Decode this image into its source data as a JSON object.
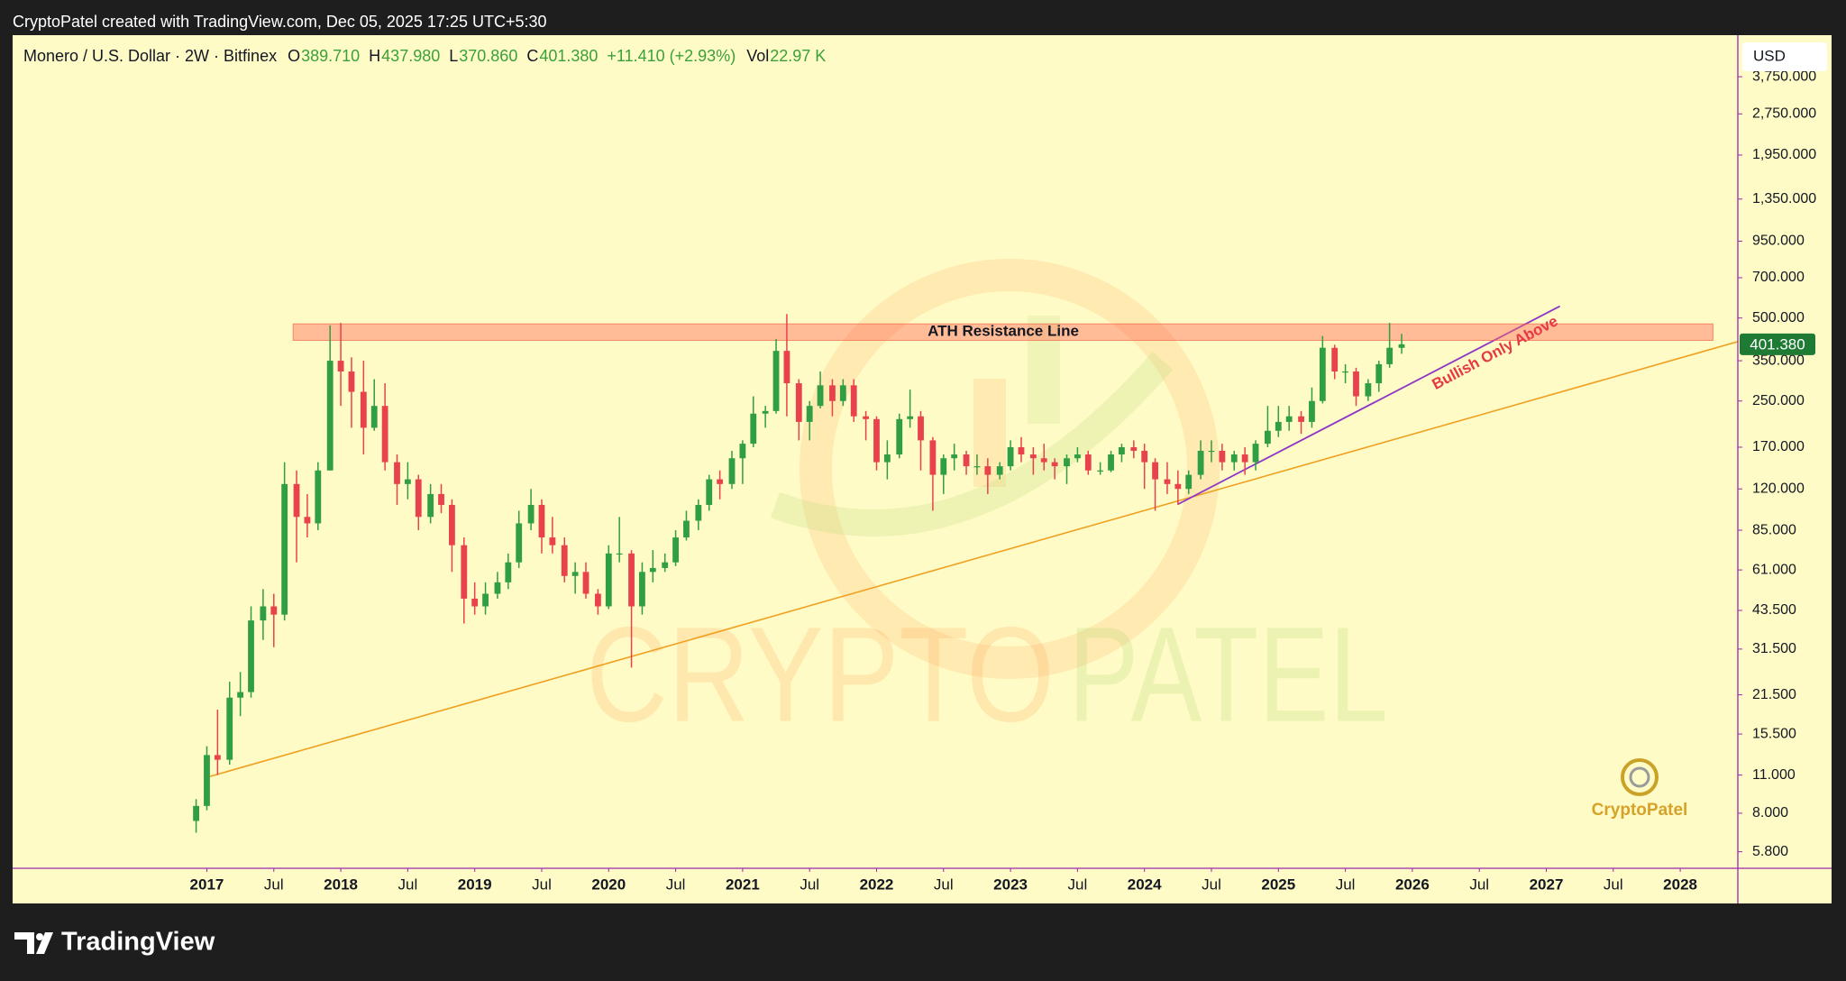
{
  "top_bar": "CryptoPatel created with TradingView.com, Dec 05, 2025 17:25 UTC+5:30",
  "chart_data": {
    "type": "candlestick",
    "legend": {
      "symbol": "Monero / U.S. Dollar · 2W · Bitfinex",
      "items": [
        {
          "label": "O",
          "value": "389.710"
        },
        {
          "label": "H",
          "value": "437.980"
        },
        {
          "label": "L",
          "value": "370.860"
        },
        {
          "label": "C",
          "value": "401.380"
        }
      ],
      "change": "+11.410 (+2.93%)",
      "volume": {
        "label": "Vol",
        "value": "22.97 K"
      }
    },
    "currency": "USD",
    "last_price_label": "401.380",
    "annotations": [
      "ATH Resistance Line",
      "Bullish Only Above"
    ],
    "watermark": [
      "CRYPTO",
      "PATEL"
    ],
    "x": [
      2016.92,
      2017,
      2017.08,
      2017.17,
      2017.25,
      2017.33,
      2017.42,
      2017.5,
      2017.58,
      2017.67,
      2017.75,
      2017.83,
      2017.92,
      2018,
      2018.08,
      2018.17,
      2018.25,
      2018.33,
      2018.42,
      2018.5,
      2018.58,
      2018.67,
      2018.75,
      2018.83,
      2018.92,
      2019,
      2019.08,
      2019.17,
      2019.25,
      2019.33,
      2019.42,
      2019.5,
      2019.58,
      2019.67,
      2019.75,
      2019.83,
      2019.92,
      2020,
      2020.08,
      2020.17,
      2020.25,
      2020.33,
      2020.42,
      2020.5,
      2020.58,
      2020.67,
      2020.75,
      2020.83,
      2020.92,
      2021,
      2021.08,
      2021.17,
      2021.25,
      2021.33,
      2021.42,
      2021.5,
      2021.58,
      2021.67,
      2021.75,
      2021.83,
      2021.92,
      2022,
      2022.08,
      2022.17,
      2022.25,
      2022.33,
      2022.42,
      2022.5,
      2022.58,
      2022.67,
      2022.75,
      2022.83,
      2022.92,
      2023,
      2023.08,
      2023.17,
      2023.25,
      2023.33,
      2023.42,
      2023.5,
      2023.58,
      2023.67,
      2023.75,
      2023.83,
      2023.92,
      2024,
      2024.08,
      2024.17,
      2024.25,
      2024.33,
      2024.42,
      2024.5,
      2024.58,
      2024.67,
      2024.75,
      2024.83,
      2024.92,
      2025,
      2025.08,
      2025.17,
      2025.25,
      2025.33,
      2025.42,
      2025.5,
      2025.58,
      2025.67,
      2025.75,
      2025.83,
      2025.92
    ],
    "open": [
      7.5,
      8.5,
      13,
      12.5,
      21,
      22,
      40,
      45,
      42,
      125,
      95,
      90,
      140,
      350,
      320,
      270,
      200,
      240,
      150,
      125,
      130,
      95,
      115,
      105,
      75,
      48,
      45,
      50,
      55,
      65,
      90,
      105,
      80,
      75,
      58,
      60,
      50,
      45,
      70,
      70,
      45,
      60,
      62,
      65,
      80,
      92,
      105,
      130,
      125,
      155,
      175,
      225,
      230,
      380,
      290,
      210,
      240,
      285,
      250,
      285,
      220,
      215,
      150,
      160,
      215,
      220,
      180,
      135,
      155,
      160,
      145,
      145,
      135,
      145,
      170,
      160,
      155,
      150,
      145,
      155,
      160,
      140,
      140,
      160,
      170,
      165,
      150,
      130,
      125,
      120,
      135,
      165,
      165,
      150,
      160,
      150,
      175,
      195,
      210,
      220,
      210,
      250,
      390,
      320,
      320,
      260,
      290,
      340,
      389.71
    ],
    "high": [
      9,
      14,
      19,
      24,
      26,
      45,
      52,
      50,
      150,
      140,
      115,
      150,
      470,
      480,
      360,
      350,
      300,
      290,
      160,
      150,
      135,
      125,
      125,
      110,
      80,
      55,
      55,
      60,
      70,
      100,
      120,
      110,
      95,
      80,
      65,
      65,
      52,
      75,
      95,
      72,
      65,
      72,
      70,
      85,
      100,
      110,
      135,
      140,
      165,
      180,
      260,
      240,
      420,
      517,
      300,
      250,
      320,
      300,
      300,
      300,
      230,
      220,
      180,
      225,
      275,
      230,
      185,
      160,
      175,
      165,
      160,
      155,
      150,
      180,
      185,
      170,
      175,
      155,
      160,
      170,
      165,
      150,
      165,
      175,
      180,
      175,
      155,
      150,
      140,
      140,
      180,
      180,
      175,
      165,
      170,
      180,
      240,
      240,
      240,
      230,
      280,
      430,
      400,
      340,
      330,
      300,
      350,
      480,
      437.98
    ],
    "low": [
      6.8,
      8.2,
      11,
      12,
      18,
      21,
      34,
      32,
      40,
      65,
      80,
      85,
      140,
      240,
      200,
      160,
      195,
      140,
      105,
      110,
      85,
      90,
      98,
      60,
      39,
      42,
      42,
      48,
      52,
      62,
      85,
      70,
      70,
      55,
      50,
      48,
      42,
      44,
      65,
      27,
      42,
      55,
      60,
      63,
      78,
      85,
      100,
      110,
      120,
      125,
      170,
      200,
      225,
      220,
      180,
      180,
      235,
      220,
      240,
      210,
      180,
      140,
      130,
      155,
      200,
      140,
      100,
      115,
      140,
      135,
      135,
      115,
      130,
      140,
      150,
      135,
      140,
      130,
      125,
      150,
      135,
      135,
      138,
      150,
      155,
      120,
      100,
      115,
      105,
      115,
      130,
      150,
      140,
      140,
      135,
      140,
      170,
      185,
      195,
      190,
      200,
      245,
      300,
      290,
      240,
      250,
      270,
      330,
      370.86
    ],
    "close": [
      8.5,
      13,
      12.5,
      21,
      22,
      40,
      45,
      42,
      125,
      95,
      90,
      140,
      350,
      320,
      270,
      200,
      240,
      150,
      125,
      130,
      95,
      115,
      105,
      75,
      48,
      45,
      50,
      55,
      65,
      90,
      105,
      80,
      75,
      58,
      60,
      50,
      45,
      70,
      70,
      45,
      60,
      62,
      65,
      80,
      92,
      105,
      130,
      125,
      155,
      175,
      225,
      230,
      380,
      290,
      210,
      240,
      285,
      250,
      285,
      220,
      215,
      150,
      160,
      215,
      220,
      180,
      135,
      155,
      160,
      145,
      145,
      135,
      145,
      170,
      160,
      155,
      150,
      145,
      155,
      160,
      140,
      140,
      160,
      170,
      165,
      150,
      130,
      125,
      120,
      135,
      165,
      165,
      150,
      160,
      150,
      175,
      195,
      210,
      220,
      210,
      250,
      390,
      320,
      320,
      260,
      290,
      340,
      390,
      401.38
    ],
    "up_color": "#2f9e44",
    "down_color": "#e8434d",
    "log_scale": true,
    "grid": false,
    "ylim": [
      5.05,
      5306
    ],
    "yticks": [
      {
        "value": 5.8,
        "label": "5.800"
      },
      {
        "value": 8,
        "label": "8.000"
      },
      {
        "value": 11,
        "label": "11.000"
      },
      {
        "value": 15.5,
        "label": "15.500"
      },
      {
        "value": 21.5,
        "label": "21.500"
      },
      {
        "value": 31.5,
        "label": "31.500"
      },
      {
        "value": 43.5,
        "label": "43.500"
      },
      {
        "value": 61,
        "label": "61.000"
      },
      {
        "value": 85,
        "label": "85.000"
      },
      {
        "value": 120,
        "label": "120.000"
      },
      {
        "value": 170,
        "label": "170.000"
      },
      {
        "value": 250,
        "label": "250.000"
      },
      {
        "value": 350,
        "label": "350.000"
      },
      {
        "value": 500,
        "label": "500.000"
      },
      {
        "value": 700,
        "label": "700.000"
      },
      {
        "value": 950,
        "label": "950.000"
      },
      {
        "value": 1350,
        "label": "1,350.000"
      },
      {
        "value": 1950,
        "label": "1,950.000"
      },
      {
        "value": 2750,
        "label": "2,750.000"
      },
      {
        "value": 3750,
        "label": "3,750.000"
      }
    ],
    "xlim": [
      2015.55,
      2028.43
    ],
    "xticks": [
      2017,
      {
        "value": 2017.5,
        "label": "Jul"
      },
      2018,
      {
        "value": 2018.5,
        "label": "Jul"
      },
      2019,
      {
        "value": 2019.5,
        "label": "Jul"
      },
      2020,
      {
        "value": 2020.5,
        "label": "Jul"
      },
      2021,
      {
        "value": 2021.5,
        "label": "Jul"
      },
      2022,
      {
        "value": 2022.5,
        "label": "Jul"
      },
      2023,
      {
        "value": 2023.5,
        "label": "Jul"
      },
      2024,
      {
        "value": 2024.5,
        "label": "Jul"
      },
      2025,
      {
        "value": 2025.5,
        "label": "Jul"
      },
      2026,
      {
        "value": 2026.5,
        "label": "Jul"
      },
      2027,
      {
        "value": 2027.5,
        "label": "Jul"
      },
      2028
    ]
  },
  "logo": "CryptoPatel",
  "footer": "TradingView"
}
